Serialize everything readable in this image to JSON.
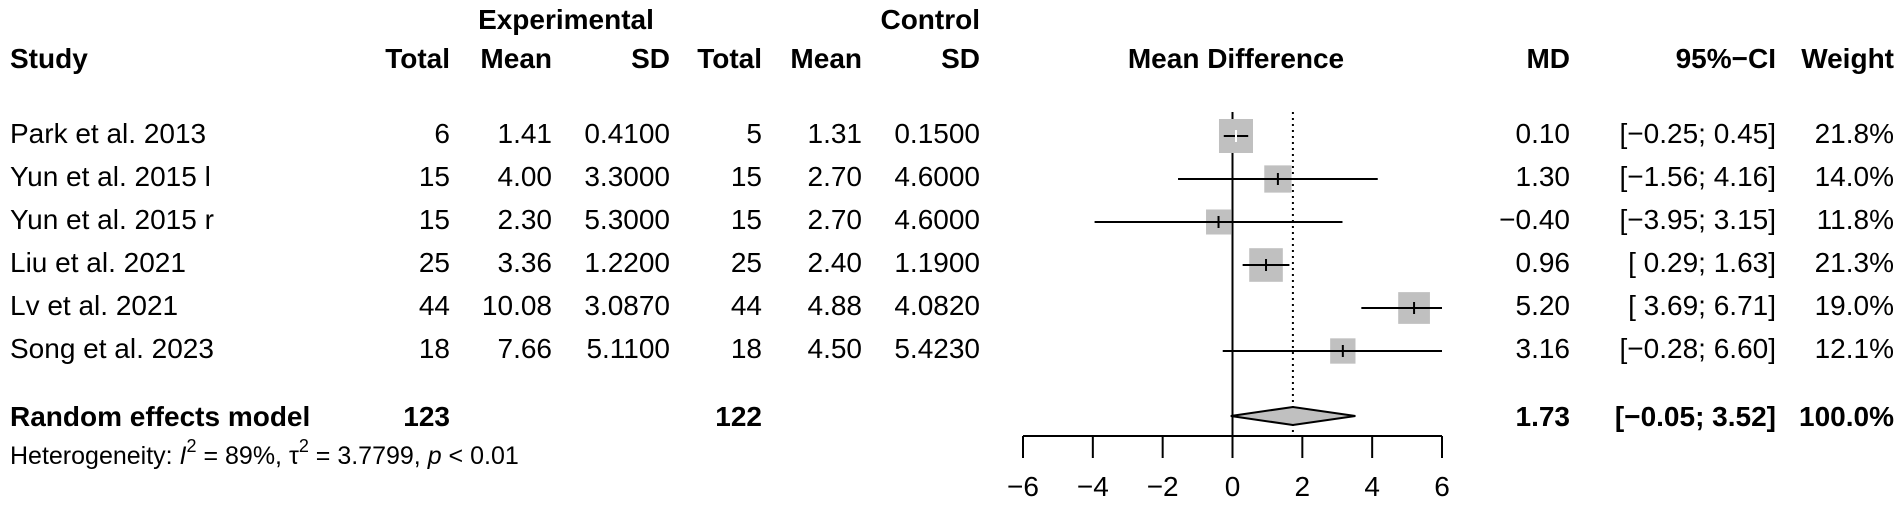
{
  "headers": {
    "group_experimental": "Experimental",
    "group_control": "Control",
    "study": "Study",
    "total": "Total",
    "mean": "Mean",
    "sd": "SD",
    "plot_label": "Mean Difference",
    "md": "MD",
    "ci": "95%−CI",
    "weight": "Weight"
  },
  "studies": [
    {
      "name": "Park et al. 2013",
      "e_total": "6",
      "e_mean": "1.41",
      "e_sd": "0.4100",
      "c_total": "5",
      "c_mean": "1.31",
      "c_sd": "0.1500",
      "md_text": "0.10",
      "ci_text": "[−0.25; 0.45]",
      "weight_text": "21.8%"
    },
    {
      "name": "Yun et al. 2015 l",
      "e_total": "15",
      "e_mean": "4.00",
      "e_sd": "3.3000",
      "c_total": "15",
      "c_mean": "2.70",
      "c_sd": "4.6000",
      "md_text": "1.30",
      "ci_text": "[−1.56; 4.16]",
      "weight_text": "14.0%"
    },
    {
      "name": "Yun et al. 2015 r",
      "e_total": "15",
      "e_mean": "2.30",
      "e_sd": "5.3000",
      "c_total": "15",
      "c_mean": "2.70",
      "c_sd": "4.6000",
      "md_text": "−0.40",
      "ci_text": "[−3.95; 3.15]",
      "weight_text": "11.8%"
    },
    {
      "name": "Liu et al. 2021",
      "e_total": "25",
      "e_mean": "3.36",
      "e_sd": "1.2200",
      "c_total": "25",
      "c_mean": "2.40",
      "c_sd": "1.1900",
      "md_text": "0.96",
      "ci_text": "[ 0.29; 1.63]",
      "weight_text": "21.3%"
    },
    {
      "name": "Lv et al. 2021",
      "e_total": "44",
      "e_mean": "10.08",
      "e_sd": "3.0870",
      "c_total": "44",
      "c_mean": "4.88",
      "c_sd": "4.0820",
      "md_text": "5.20",
      "ci_text": "[ 3.69; 6.71]",
      "weight_text": "19.0%"
    },
    {
      "name": "Song et al. 2023",
      "e_total": "18",
      "e_mean": "7.66",
      "e_sd": "5.1100",
      "c_total": "18",
      "c_mean": "4.50",
      "c_sd": "5.4230",
      "md_text": "3.16",
      "ci_text": "[−0.28; 6.60]",
      "weight_text": "12.1%"
    }
  ],
  "overall": {
    "label": "Random effects model",
    "e_total": "123",
    "c_total": "122",
    "md_text": "1.73",
    "ci_text": "[−0.05; 3.52]",
    "weight_text": "100.0%"
  },
  "heterogeneity": {
    "prefix": "Heterogeneity: ",
    "i_symbol": "I",
    "i_sup": "2",
    "i_value": " = 89%, ",
    "tau_symbol": "τ",
    "tau_sup": "2",
    "tau_value": " = 3.7799, ",
    "p_symbol": "p",
    "p_value": " < 0.01"
  },
  "chart_data": {
    "type": "forest",
    "xlabel": "",
    "xlim": [
      -6,
      6
    ],
    "ticks": [
      -6,
      -4,
      -2,
      0,
      2,
      4,
      6
    ],
    "tick_labels": [
      "−6",
      "−4",
      "−2",
      "0",
      "2",
      "4",
      "6"
    ],
    "null_line": 0,
    "studies": [
      {
        "md": 0.1,
        "lo": -0.25,
        "hi": 0.45,
        "weight": 21.8
      },
      {
        "md": 1.3,
        "lo": -1.56,
        "hi": 4.16,
        "weight": 14.0
      },
      {
        "md": -0.4,
        "lo": -3.95,
        "hi": 3.15,
        "weight": 11.8
      },
      {
        "md": 0.96,
        "lo": 0.29,
        "hi": 1.63,
        "weight": 21.3
      },
      {
        "md": 5.2,
        "lo": 3.69,
        "hi": 6.71,
        "weight": 19.0
      },
      {
        "md": 3.16,
        "lo": -0.28,
        "hi": 6.6,
        "weight": 12.1
      }
    ],
    "pooled": {
      "md": 1.73,
      "lo": -0.05,
      "hi": 3.52
    },
    "box_color": "#c0c0c0",
    "diamond_color": "#c0c0c0"
  }
}
